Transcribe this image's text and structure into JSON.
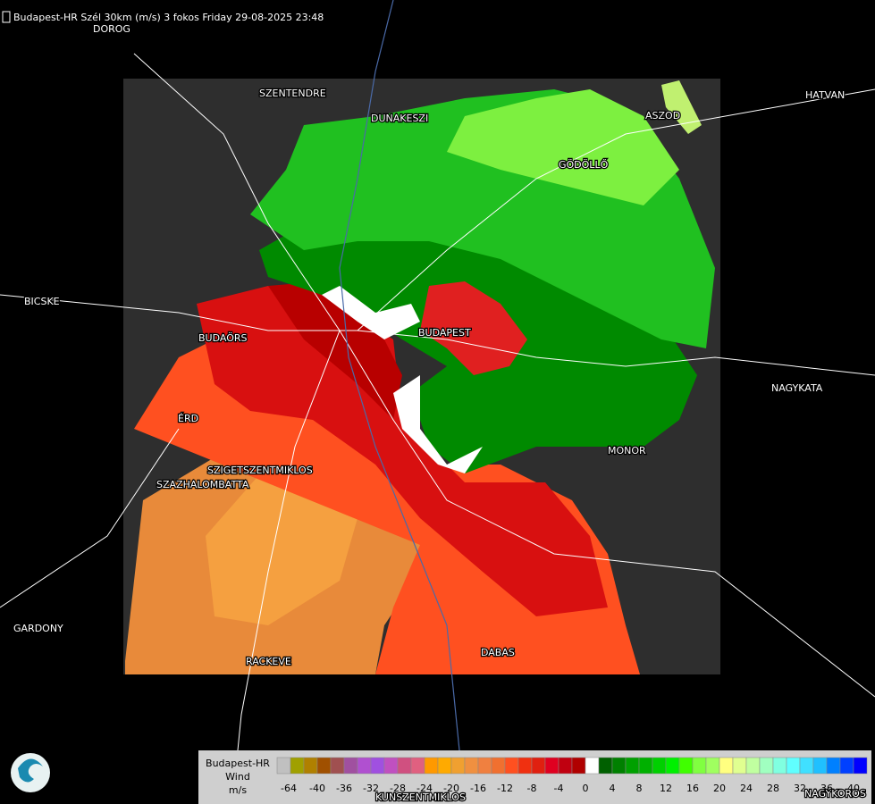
{
  "header": {
    "title": "Budapest-HR Szél 30km (m/s) 3 fokos Friday 29-08-2025 23:48"
  },
  "places": [
    "DOROG",
    "SZENTENDRE",
    "DUNAKESZI",
    "ASZOD",
    "HATVAN",
    "GÖDÖLLŐ",
    "BICSKE",
    "BUDAÖRS",
    "BUDAPEST",
    "NAGYKATA",
    "ÉRD",
    "MONOR",
    "SZIGETSZENTMIKLOS",
    "SZAZHALOMBATTA",
    "GARDONY",
    "RACKEVE",
    "DABAS",
    "KUNSZENTMIKLOS",
    "NAGYKOROS"
  ],
  "legend": {
    "lines": [
      "Budapest-HR",
      "Wind",
      "m/s"
    ],
    "colors": [
      "#c0c0c0",
      "#a0a000",
      "#b08000",
      "#a05000",
      "#a05050",
      "#a050a0",
      "#b050d0",
      "#a050e0",
      "#c050c0",
      "#d05080",
      "#e06080",
      "#ff9900",
      "#ffaa00",
      "#f0a030",
      "#f09040",
      "#f08040",
      "#f07030",
      "#ff5020",
      "#f03010",
      "#e02010",
      "#e00020",
      "#c00010",
      "#b00000",
      "#ffffff",
      "#006000",
      "#008000",
      "#00a000",
      "#00b000",
      "#00d000",
      "#00f000",
      "#40ff00",
      "#80ff40",
      "#a0ff60",
      "#ffff80",
      "#e0ff90",
      "#c0ffa0",
      "#a0ffc0",
      "#80ffe0",
      "#60ffff",
      "#40e0ff",
      "#20c0ff",
      "#0080ff",
      "#0040ff",
      "#0000ff"
    ],
    "ticks": [
      -64,
      -40,
      -36,
      -32,
      -28,
      -24,
      -20,
      -16,
      -12,
      -8,
      -4,
      0,
      4,
      8,
      12,
      16,
      20,
      24,
      28,
      32,
      36,
      40
    ]
  }
}
